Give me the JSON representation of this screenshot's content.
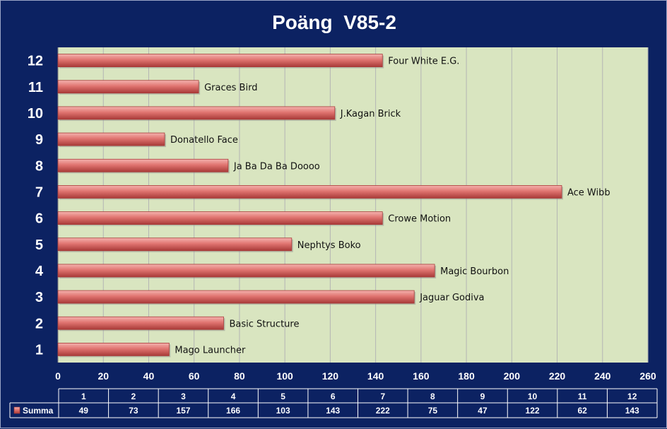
{
  "chart_data": {
    "type": "bar",
    "orientation": "horizontal",
    "title": "Poäng  V85-2",
    "categories": [
      "1",
      "2",
      "3",
      "4",
      "5",
      "6",
      "7",
      "8",
      "9",
      "10",
      "11",
      "12"
    ],
    "series": [
      {
        "name": "Summa",
        "values": [
          49,
          73,
          157,
          166,
          103,
          143,
          222,
          75,
          47,
          122,
          62,
          143
        ]
      }
    ],
    "bar_labels": [
      "Mago Launcher",
      "Basic Structure",
      "Jaguar Godiva",
      "Magic Bourbon",
      "Nephtys Boko",
      "Crowe Motion",
      "Ace Wibb",
      "Ja Ba Da Ba Doooo",
      "Donatello Face",
      "J.Kagan Brick",
      "Graces Bird",
      "Four White E.G."
    ],
    "xlim": [
      0,
      260
    ],
    "x_ticks": [
      0,
      20,
      40,
      60,
      80,
      100,
      120,
      140,
      160,
      180,
      200,
      220,
      240,
      260
    ],
    "grid": "vertical",
    "data_table": true,
    "colors": {
      "background": "#0c2262",
      "plot_area": "#d9e5c0",
      "bar": "#e07470",
      "bar_light": "#f4b2ae",
      "bar_dark": "#a83a38",
      "gridline": "#b4b4b4",
      "text_light": "#ffffff",
      "text_dark": "#111111"
    }
  }
}
